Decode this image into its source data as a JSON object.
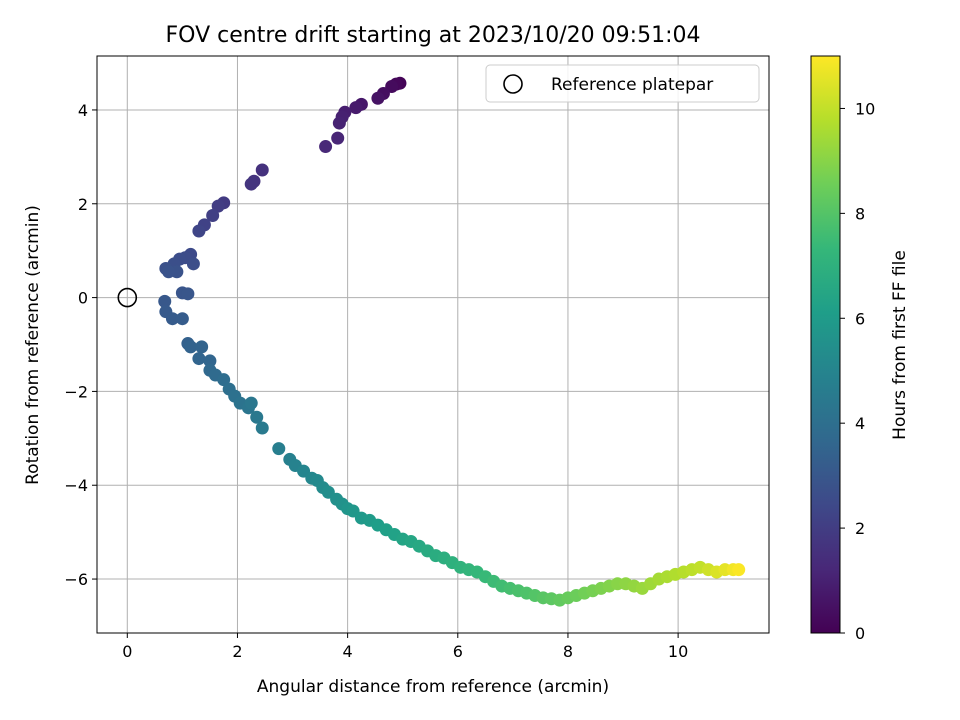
{
  "chart_data": {
    "type": "scatter",
    "title": "FOV centre drift starting at 2023/10/20 09:51:04",
    "xlabel": "Angular distance from reference (arcmin)",
    "ylabel": "Rotation from reference (arcmin)",
    "colorbar_label": "Hours from first FF file",
    "xlim": [
      -0.55,
      11.65
    ],
    "ylim": [
      -7.15,
      5.15
    ],
    "x_ticks": [
      0,
      2,
      4,
      6,
      8,
      10
    ],
    "y_ticks": [
      -6,
      -4,
      -2,
      0,
      2,
      4
    ],
    "colorbar_range": [
      0,
      11
    ],
    "colorbar_ticks": [
      0,
      2,
      4,
      6,
      8,
      10
    ],
    "colormap": [
      "#440154",
      "#482878",
      "#3e4989",
      "#31688e",
      "#26828e",
      "#1f9e89",
      "#35b779",
      "#6ece58",
      "#b5de2b",
      "#fde725"
    ],
    "grid": true,
    "legend": {
      "location": "top-right",
      "entries": [
        "Reference platepar"
      ]
    },
    "reference_point": {
      "x": 0,
      "y": 0
    },
    "series": [
      {
        "name": "drift",
        "points": [
          [
            4.95,
            4.57,
            0.1
          ],
          [
            4.88,
            4.55,
            0.2
          ],
          [
            4.8,
            4.5,
            0.3
          ],
          [
            4.65,
            4.35,
            0.4
          ],
          [
            4.55,
            4.25,
            0.55
          ],
          [
            4.25,
            4.12,
            0.7
          ],
          [
            4.15,
            4.05,
            0.8
          ],
          [
            3.95,
            3.95,
            0.9
          ],
          [
            3.9,
            3.85,
            1.0
          ],
          [
            3.85,
            3.72,
            1.05
          ],
          [
            3.82,
            3.4,
            1.15
          ],
          [
            3.6,
            3.22,
            1.25
          ],
          [
            2.45,
            2.72,
            1.55
          ],
          [
            2.3,
            2.48,
            1.65
          ],
          [
            2.25,
            2.42,
            1.7
          ],
          [
            1.75,
            2.02,
            1.9
          ],
          [
            1.65,
            1.95,
            2.0
          ],
          [
            1.55,
            1.75,
            2.1
          ],
          [
            1.4,
            1.55,
            2.2
          ],
          [
            1.3,
            1.42,
            2.3
          ],
          [
            1.15,
            0.92,
            2.5
          ],
          [
            1.05,
            0.85,
            2.55
          ],
          [
            0.95,
            0.82,
            2.6
          ],
          [
            1.2,
            0.72,
            2.65
          ],
          [
            0.85,
            0.72,
            2.7
          ],
          [
            0.7,
            0.62,
            2.75
          ],
          [
            0.9,
            0.55,
            2.8
          ],
          [
            0.75,
            0.55,
            2.85
          ],
          [
            1.0,
            0.1,
            2.9
          ],
          [
            1.1,
            0.08,
            2.95
          ],
          [
            0.68,
            -0.08,
            3.05
          ],
          [
            0.7,
            -0.3,
            3.1
          ],
          [
            0.82,
            -0.45,
            3.15
          ],
          [
            1.0,
            -0.45,
            3.2
          ],
          [
            1.1,
            -0.98,
            3.4
          ],
          [
            1.15,
            -1.05,
            3.45
          ],
          [
            1.35,
            -1.05,
            3.5
          ],
          [
            1.3,
            -1.3,
            3.55
          ],
          [
            1.5,
            -1.35,
            3.6
          ],
          [
            1.5,
            -1.55,
            3.7
          ],
          [
            1.6,
            -1.65,
            3.8
          ],
          [
            1.75,
            -1.75,
            3.9
          ],
          [
            1.85,
            -1.95,
            4.0
          ],
          [
            1.95,
            -2.1,
            4.1
          ],
          [
            2.05,
            -2.25,
            4.2
          ],
          [
            2.2,
            -2.35,
            4.3
          ],
          [
            2.25,
            -2.25,
            4.35
          ],
          [
            2.35,
            -2.55,
            4.4
          ],
          [
            2.45,
            -2.78,
            4.5
          ],
          [
            2.75,
            -3.22,
            4.7
          ],
          [
            2.95,
            -3.45,
            4.8
          ],
          [
            3.05,
            -3.58,
            4.9
          ],
          [
            3.2,
            -3.7,
            5.0
          ],
          [
            3.35,
            -3.85,
            5.1
          ],
          [
            3.45,
            -3.9,
            5.2
          ],
          [
            3.55,
            -4.05,
            5.3
          ],
          [
            3.65,
            -4.15,
            5.4
          ],
          [
            3.8,
            -4.3,
            5.5
          ],
          [
            3.9,
            -4.4,
            5.6
          ],
          [
            4.0,
            -4.5,
            5.7
          ],
          [
            4.1,
            -4.55,
            5.8
          ],
          [
            4.25,
            -4.7,
            5.9
          ],
          [
            4.4,
            -4.75,
            6.0
          ],
          [
            4.55,
            -4.85,
            6.1
          ],
          [
            4.7,
            -4.95,
            6.2
          ],
          [
            4.85,
            -5.05,
            6.3
          ],
          [
            5.0,
            -5.15,
            6.4
          ],
          [
            5.15,
            -5.2,
            6.5
          ],
          [
            5.3,
            -5.3,
            6.6
          ],
          [
            5.45,
            -5.4,
            6.7
          ],
          [
            5.6,
            -5.5,
            6.8
          ],
          [
            5.75,
            -5.55,
            6.9
          ],
          [
            5.9,
            -5.65,
            7.0
          ],
          [
            6.05,
            -5.75,
            7.1
          ],
          [
            6.2,
            -5.8,
            7.2
          ],
          [
            6.35,
            -5.85,
            7.3
          ],
          [
            6.5,
            -5.95,
            7.4
          ],
          [
            6.65,
            -6.05,
            7.5
          ],
          [
            6.8,
            -6.15,
            7.6
          ],
          [
            6.95,
            -6.2,
            7.7
          ],
          [
            7.1,
            -6.25,
            7.8
          ],
          [
            7.25,
            -6.3,
            7.9
          ],
          [
            7.4,
            -6.35,
            8.0
          ],
          [
            7.55,
            -6.4,
            8.1
          ],
          [
            7.7,
            -6.42,
            8.2
          ],
          [
            7.85,
            -6.45,
            8.3
          ],
          [
            8.0,
            -6.4,
            8.4
          ],
          [
            8.15,
            -6.35,
            8.5
          ],
          [
            8.3,
            -6.3,
            8.6
          ],
          [
            8.45,
            -6.25,
            8.7
          ],
          [
            8.6,
            -6.2,
            8.8
          ],
          [
            8.75,
            -6.15,
            8.9
          ],
          [
            8.9,
            -6.1,
            9.0
          ],
          [
            9.05,
            -6.1,
            9.1
          ],
          [
            9.2,
            -6.15,
            9.2
          ],
          [
            9.35,
            -6.2,
            9.3
          ],
          [
            9.5,
            -6.1,
            9.4
          ],
          [
            9.65,
            -6.0,
            9.5
          ],
          [
            9.8,
            -5.95,
            9.6
          ],
          [
            9.95,
            -5.9,
            9.7
          ],
          [
            10.1,
            -5.85,
            9.8
          ],
          [
            10.25,
            -5.8,
            9.9
          ],
          [
            10.4,
            -5.75,
            10.0
          ],
          [
            10.55,
            -5.8,
            10.2
          ],
          [
            10.7,
            -5.85,
            10.4
          ],
          [
            10.85,
            -5.8,
            10.6
          ],
          [
            11.0,
            -5.8,
            10.8
          ],
          [
            11.1,
            -5.8,
            10.95
          ]
        ]
      }
    ]
  }
}
